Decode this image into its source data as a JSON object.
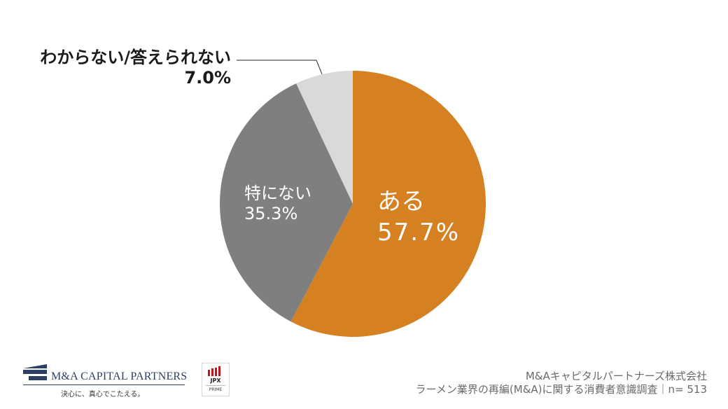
{
  "chart_data": {
    "type": "pie",
    "title": "",
    "start_angle": "12 o'clock",
    "direction": "clockwise",
    "slices": [
      {
        "label": "ある",
        "value": 57.7,
        "display": "57.7%",
        "color": "#d58122"
      },
      {
        "label": "特にない",
        "value": 35.3,
        "display": "35.3%",
        "color": "#7f7f7f"
      },
      {
        "label": "わからない/答えられない",
        "value": 7.0,
        "display": "7.0%",
        "color": "#d9d9d9"
      }
    ],
    "center": [
      504,
      291
    ],
    "radius": 190
  },
  "labels": {
    "yes": {
      "name": "ある",
      "pct": "57.7%"
    },
    "none": {
      "name": "特にない",
      "pct": "35.3%"
    },
    "unknown": {
      "name": "わからない/答えられない",
      "pct": "7.0%"
    }
  },
  "footer": {
    "company": "M&Aキャピタルパートナーズ株式会社",
    "survey": "ラーメン業界の再編(M&A)に関する消費者意識調査｜n= 513"
  },
  "logos": {
    "mac_name": "M&A CAPITAL PARTNERS",
    "mac_tagline": "決心に、真心でこたえる。",
    "jpx_name": "JPX",
    "jpx_market": "PRIME"
  }
}
